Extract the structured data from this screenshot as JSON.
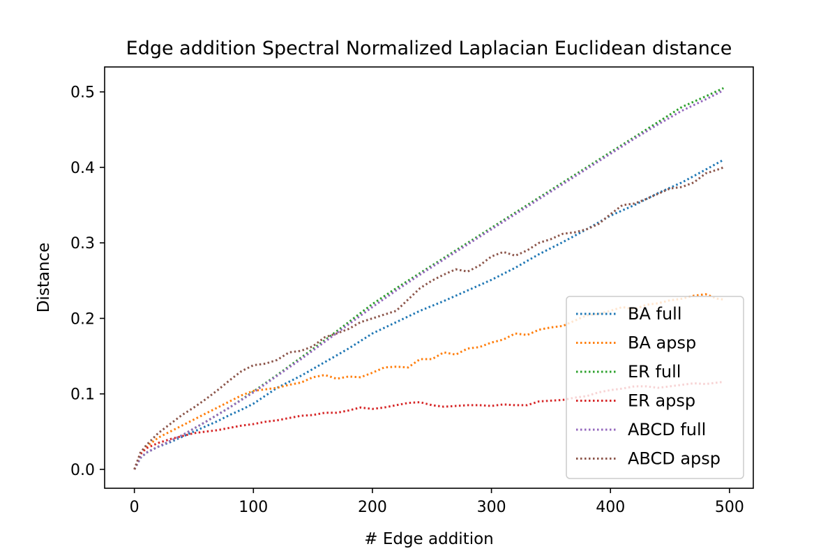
{
  "chart_data": {
    "type": "line",
    "title": "Edge addition Spectral Normalized Laplacian Euclidean distance",
    "xlabel": "# Edge addition",
    "ylabel": "Distance",
    "xlim": [
      -25,
      520
    ],
    "ylim": [
      -0.025,
      0.533
    ],
    "xticks": [
      0,
      100,
      200,
      300,
      400,
      500
    ],
    "xtick_labels": [
      "0",
      "100",
      "200",
      "300",
      "400",
      "500"
    ],
    "yticks": [
      0.0,
      0.1,
      0.2,
      0.3,
      0.4,
      0.5
    ],
    "ytick_labels": [
      "0.0",
      "0.1",
      "0.2",
      "0.3",
      "0.4",
      "0.5"
    ],
    "grid": false,
    "legend_position": "lower-right",
    "line_style": "dotted",
    "series": [
      {
        "name": "BA full",
        "color": "#1f77b4",
        "x": [
          0,
          5,
          10,
          20,
          30,
          40,
          50,
          60,
          70,
          80,
          90,
          100,
          120,
          140,
          160,
          180,
          200,
          220,
          240,
          260,
          280,
          300,
          320,
          340,
          360,
          380,
          400,
          420,
          440,
          460,
          480,
          495
        ],
        "y": [
          0.0,
          0.015,
          0.022,
          0.03,
          0.036,
          0.043,
          0.05,
          0.057,
          0.064,
          0.072,
          0.079,
          0.087,
          0.108,
          0.124,
          0.142,
          0.16,
          0.18,
          0.195,
          0.21,
          0.223,
          0.237,
          0.251,
          0.267,
          0.285,
          0.301,
          0.318,
          0.336,
          0.35,
          0.366,
          0.38,
          0.397,
          0.41
        ]
      },
      {
        "name": "BA apsp",
        "color": "#ff7f0e",
        "x": [
          0,
          5,
          10,
          15,
          20,
          30,
          40,
          50,
          60,
          70,
          80,
          90,
          100,
          110,
          120,
          130,
          140,
          150,
          160,
          170,
          180,
          190,
          200,
          210,
          220,
          230,
          240,
          250,
          260,
          270,
          280,
          290,
          300,
          310,
          320,
          330,
          340,
          350,
          360,
          370,
          380,
          390,
          400,
          410,
          420,
          430,
          440,
          450,
          460,
          470,
          480,
          490,
          495
        ],
        "y": [
          0.0,
          0.02,
          0.03,
          0.036,
          0.042,
          0.05,
          0.058,
          0.066,
          0.074,
          0.082,
          0.09,
          0.098,
          0.104,
          0.106,
          0.108,
          0.112,
          0.115,
          0.122,
          0.125,
          0.12,
          0.123,
          0.122,
          0.128,
          0.135,
          0.136,
          0.135,
          0.146,
          0.146,
          0.155,
          0.152,
          0.16,
          0.162,
          0.168,
          0.172,
          0.18,
          0.178,
          0.185,
          0.188,
          0.19,
          0.197,
          0.204,
          0.206,
          0.21,
          0.215,
          0.212,
          0.218,
          0.22,
          0.224,
          0.226,
          0.23,
          0.232,
          0.226,
          0.225
        ]
      },
      {
        "name": "ER full",
        "color": "#2ca02c",
        "x": [
          0,
          5,
          10,
          20,
          40,
          60,
          80,
          100,
          120,
          140,
          160,
          180,
          200,
          220,
          240,
          260,
          280,
          300,
          320,
          340,
          360,
          380,
          400,
          420,
          440,
          460,
          480,
          495
        ],
        "y": [
          0.0,
          0.015,
          0.022,
          0.03,
          0.045,
          0.063,
          0.082,
          0.103,
          0.125,
          0.148,
          0.171,
          0.195,
          0.219,
          0.24,
          0.26,
          0.28,
          0.3,
          0.32,
          0.34,
          0.36,
          0.38,
          0.4,
          0.42,
          0.44,
          0.46,
          0.48,
          0.494,
          0.505
        ]
      },
      {
        "name": "ER apsp",
        "color": "#d62728",
        "x": [
          0,
          5,
          10,
          20,
          30,
          40,
          50,
          60,
          70,
          80,
          90,
          100,
          110,
          120,
          130,
          140,
          150,
          160,
          170,
          180,
          190,
          200,
          210,
          220,
          230,
          240,
          250,
          260,
          270,
          280,
          290,
          300,
          310,
          320,
          330,
          340,
          350,
          360,
          370,
          380,
          390,
          400,
          410,
          420,
          430,
          440,
          450,
          460,
          470,
          480,
          490,
          495
        ],
        "y": [
          0.0,
          0.02,
          0.028,
          0.035,
          0.04,
          0.044,
          0.048,
          0.05,
          0.052,
          0.055,
          0.058,
          0.06,
          0.063,
          0.065,
          0.068,
          0.071,
          0.072,
          0.075,
          0.075,
          0.078,
          0.082,
          0.08,
          0.082,
          0.085,
          0.088,
          0.089,
          0.085,
          0.083,
          0.084,
          0.085,
          0.085,
          0.084,
          0.086,
          0.085,
          0.085,
          0.09,
          0.091,
          0.092,
          0.095,
          0.097,
          0.102,
          0.105,
          0.107,
          0.11,
          0.11,
          0.108,
          0.11,
          0.112,
          0.114,
          0.113,
          0.115,
          0.116
        ]
      },
      {
        "name": "ABCD full",
        "color": "#9467bd",
        "x": [
          0,
          5,
          10,
          20,
          40,
          60,
          80,
          100,
          120,
          140,
          160,
          180,
          200,
          220,
          240,
          260,
          280,
          300,
          320,
          340,
          360,
          380,
          400,
          420,
          440,
          460,
          480,
          495
        ],
        "y": [
          0.0,
          0.015,
          0.022,
          0.03,
          0.045,
          0.063,
          0.082,
          0.102,
          0.124,
          0.146,
          0.169,
          0.192,
          0.215,
          0.237,
          0.258,
          0.278,
          0.298,
          0.318,
          0.338,
          0.358,
          0.378,
          0.398,
          0.418,
          0.438,
          0.457,
          0.475,
          0.49,
          0.502
        ]
      },
      {
        "name": "ABCD apsp",
        "color": "#8c564b",
        "x": [
          0,
          5,
          10,
          15,
          20,
          30,
          40,
          50,
          60,
          70,
          80,
          90,
          100,
          110,
          120,
          130,
          140,
          150,
          160,
          170,
          180,
          190,
          200,
          210,
          220,
          230,
          240,
          250,
          260,
          270,
          280,
          290,
          300,
          310,
          320,
          330,
          340,
          350,
          360,
          370,
          380,
          390,
          400,
          410,
          420,
          430,
          440,
          450,
          460,
          470,
          480,
          490,
          495
        ],
        "y": [
          0.0,
          0.022,
          0.032,
          0.04,
          0.048,
          0.06,
          0.072,
          0.082,
          0.093,
          0.105,
          0.118,
          0.13,
          0.138,
          0.14,
          0.145,
          0.155,
          0.157,
          0.163,
          0.175,
          0.18,
          0.186,
          0.195,
          0.2,
          0.205,
          0.21,
          0.225,
          0.24,
          0.25,
          0.258,
          0.265,
          0.262,
          0.27,
          0.282,
          0.288,
          0.283,
          0.29,
          0.3,
          0.305,
          0.312,
          0.314,
          0.318,
          0.325,
          0.338,
          0.35,
          0.352,
          0.358,
          0.365,
          0.372,
          0.374,
          0.38,
          0.392,
          0.397,
          0.4
        ]
      }
    ]
  }
}
